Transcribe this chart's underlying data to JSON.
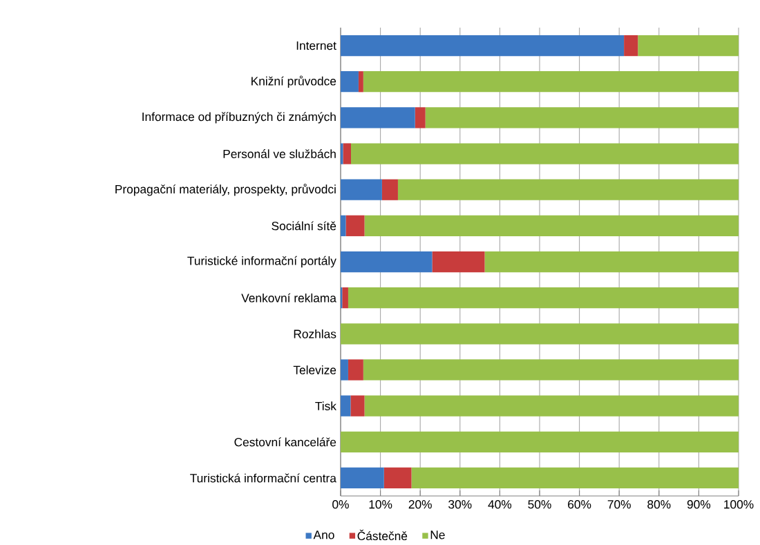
{
  "chart_data": {
    "type": "bar",
    "orientation": "horizontal",
    "stacked": true,
    "categories": [
      "Internet",
      "Knižní průvodce",
      "Informace od příbuzných či známých",
      "Personál ve službách",
      "Propagační materiály, prospekty, průvodci",
      "Sociální sítě",
      "Turistické informační portály",
      "Venkovní reklama",
      "Rozhlas",
      "Televize",
      "Tisk",
      "Cestovní kanceláře",
      "Turistická informační centra"
    ],
    "series": [
      {
        "name": "Ano",
        "color": "#3c78c3",
        "values": [
          71.2,
          4.5,
          18.7,
          0.6,
          10.4,
          1.3,
          23.0,
          0.4,
          0,
          1.9,
          2.5,
          0,
          10.9
        ]
      },
      {
        "name": "Částečně",
        "color": "#c83c3c",
        "values": [
          3.5,
          1.2,
          2.6,
          2.0,
          4.0,
          4.7,
          13.2,
          1.5,
          0,
          3.8,
          3.5,
          0,
          6.9
        ]
      },
      {
        "name": "Ne",
        "color": "#98c04a",
        "values": [
          25.3,
          94.3,
          78.7,
          97.4,
          85.6,
          94.0,
          63.8,
          98.1,
          100,
          94.3,
          94.0,
          100,
          82.2
        ]
      }
    ],
    "xlim": [
      0,
      100
    ],
    "xticks": [
      {
        "value": 0,
        "label": "0%"
      },
      {
        "value": 10,
        "label": "10%"
      },
      {
        "value": 20,
        "label": "20%"
      },
      {
        "value": 30,
        "label": "30%"
      },
      {
        "value": 40,
        "label": "40%"
      },
      {
        "value": 50,
        "label": "50%"
      },
      {
        "value": 60,
        "label": "60%"
      },
      {
        "value": 70,
        "label": "70%"
      },
      {
        "value": 80,
        "label": "80%"
      },
      {
        "value": 90,
        "label": "90%"
      },
      {
        "value": 100,
        "label": "100%"
      }
    ],
    "grid": "x",
    "legend": "bottom"
  }
}
